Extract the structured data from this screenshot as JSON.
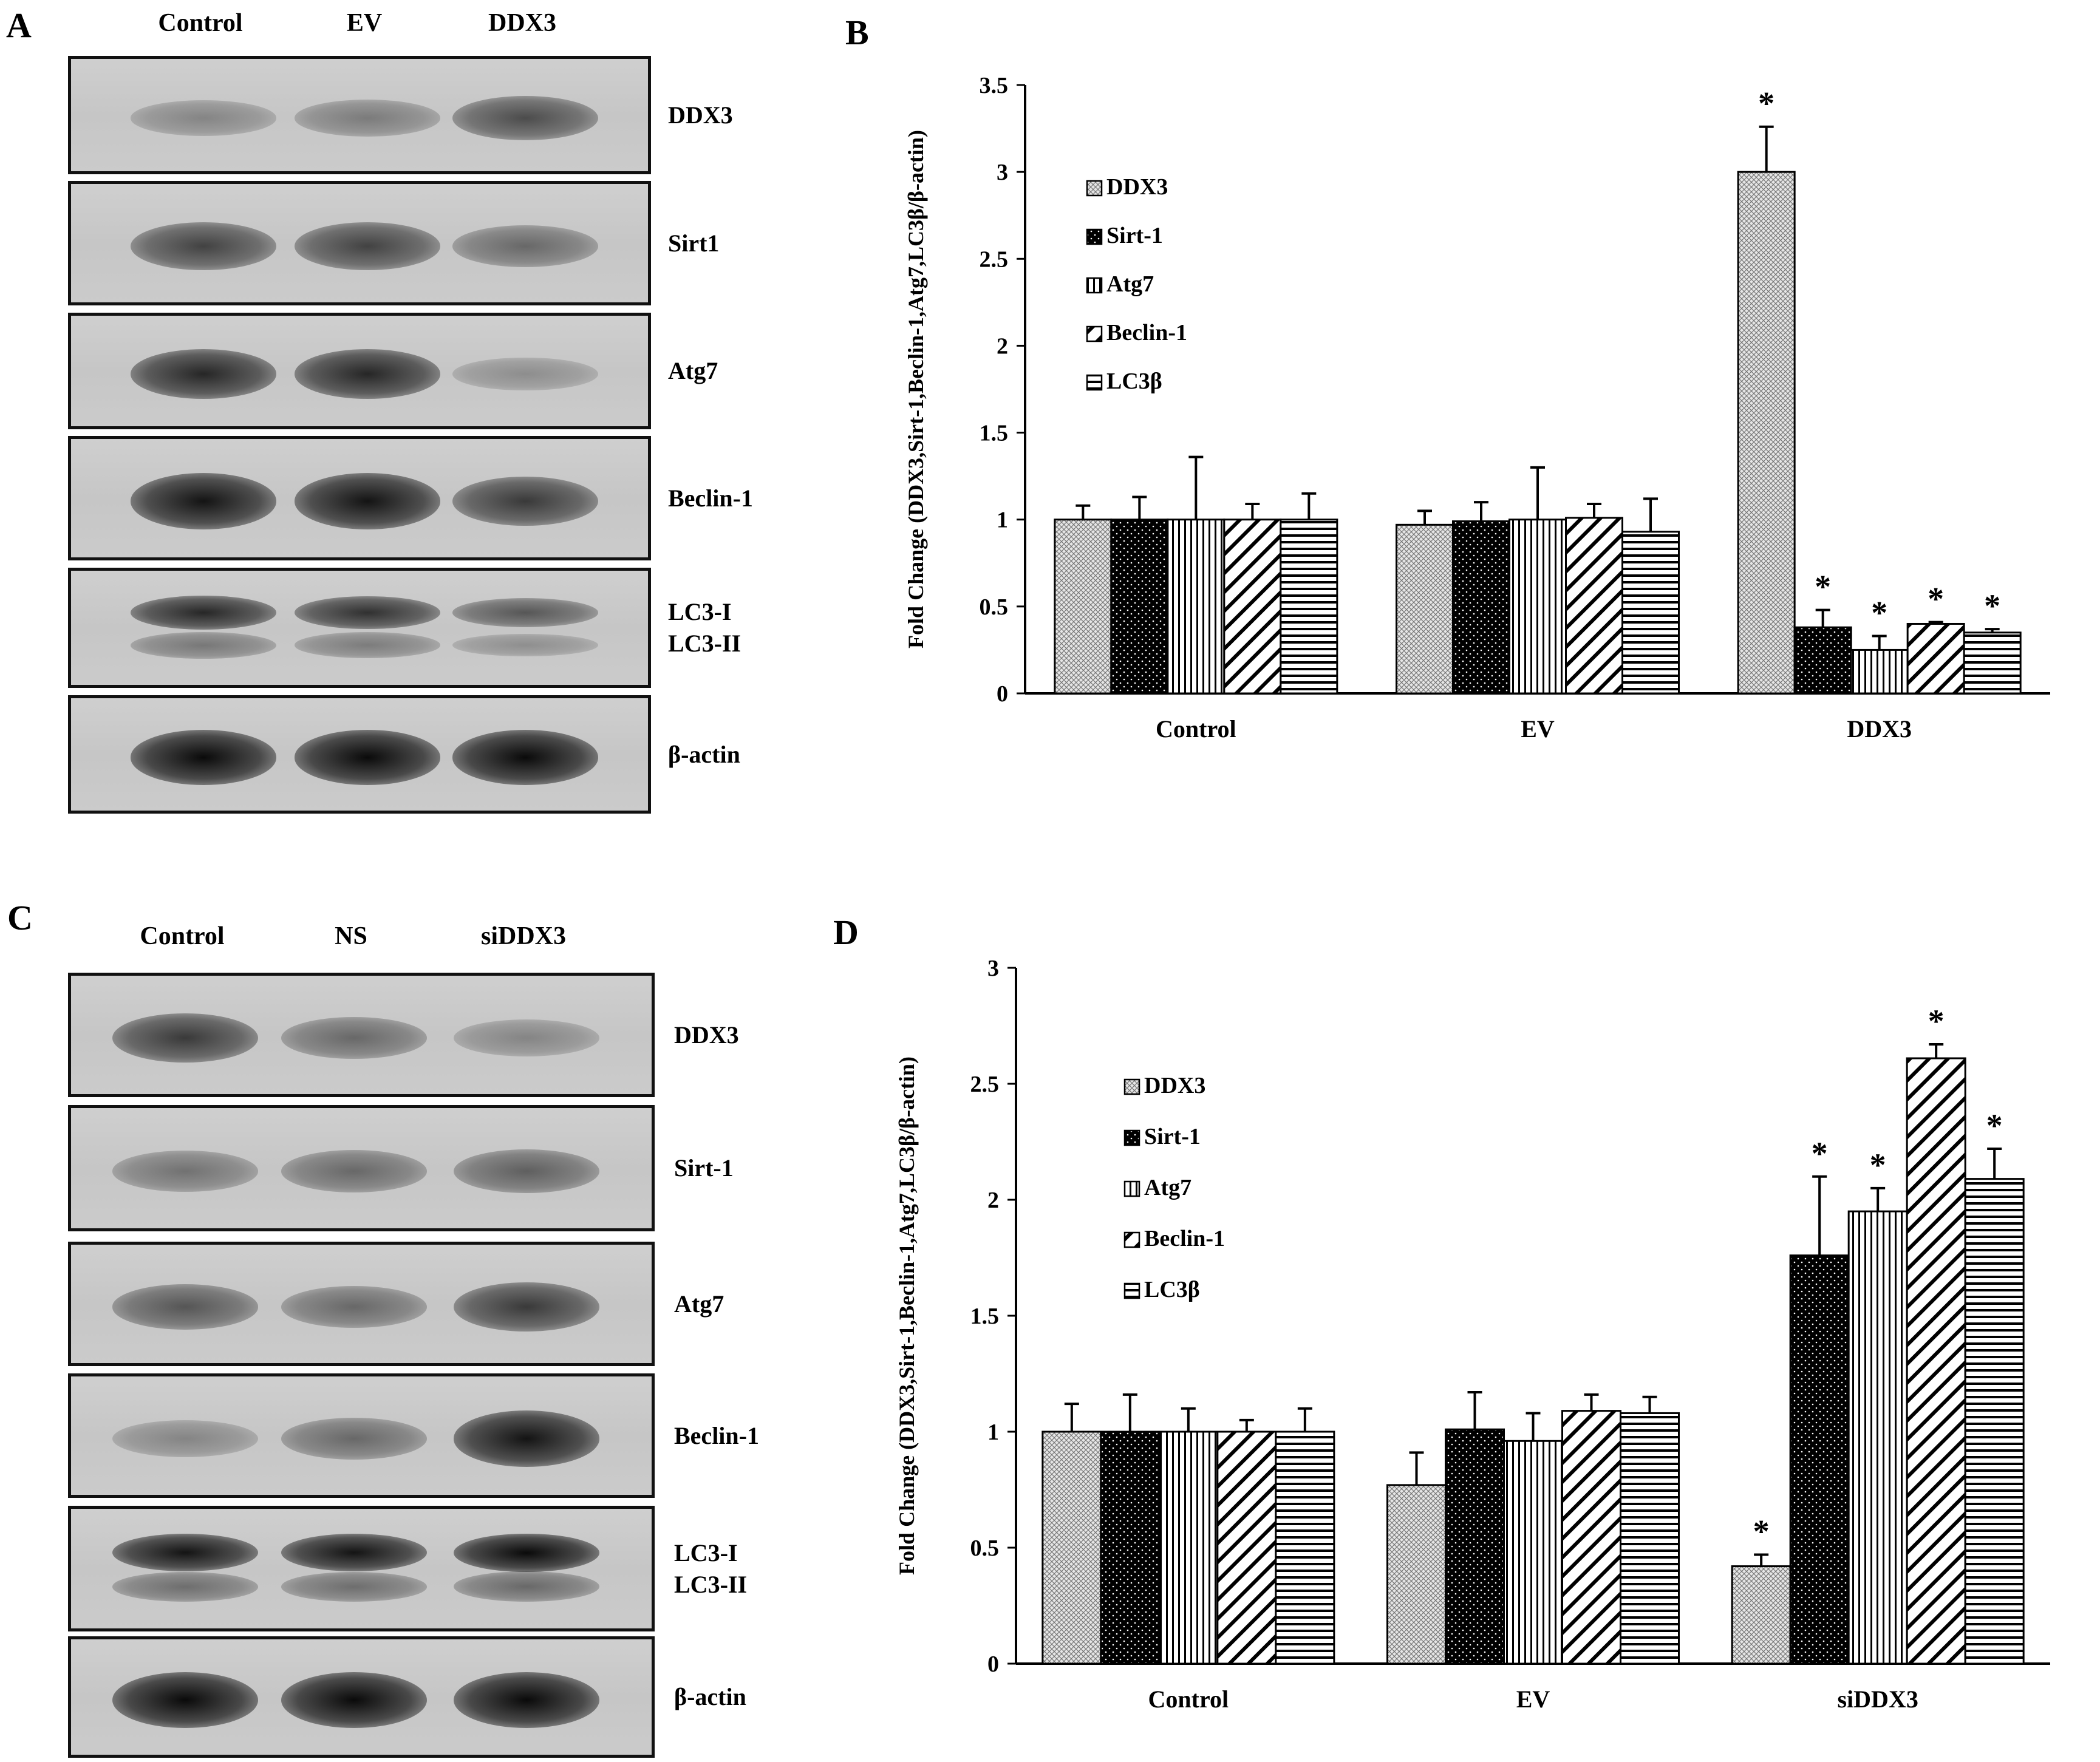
{
  "panels": {
    "A": "A",
    "B": "B",
    "C": "C",
    "D": "D"
  },
  "blot_A": {
    "columns": [
      "Control",
      "EV",
      "DDX3"
    ],
    "rows": [
      {
        "label": "DDX3",
        "intensity": [
          0.35,
          0.4,
          0.65
        ]
      },
      {
        "label": "Sirt1",
        "intensity": [
          0.7,
          0.7,
          0.5
        ]
      },
      {
        "label": "Atg7",
        "intensity": [
          0.85,
          0.85,
          0.3
        ]
      },
      {
        "label": "Beclin-1",
        "intensity": [
          0.95,
          0.95,
          0.75
        ]
      },
      {
        "label": "LC3-I\nLC3-II",
        "intensity": [
          0.85,
          0.8,
          0.6
        ]
      },
      {
        "label": "β-actin",
        "intensity": [
          1,
          1,
          1
        ]
      }
    ]
  },
  "blot_C": {
    "columns": [
      "Control",
      "NS",
      "siDDX3"
    ],
    "rows": [
      {
        "label": "DDX3",
        "intensity": [
          0.75,
          0.5,
          0.35
        ]
      },
      {
        "label": "Sirt-1",
        "intensity": [
          0.45,
          0.5,
          0.55
        ]
      },
      {
        "label": "Atg7",
        "intensity": [
          0.6,
          0.5,
          0.75
        ]
      },
      {
        "label": "Beclin-1",
        "intensity": [
          0.35,
          0.5,
          0.95
        ]
      },
      {
        "label": "LC3-I\nLC3-II",
        "intensity": [
          0.95,
          0.95,
          1
        ]
      },
      {
        "label": "β-actin",
        "intensity": [
          1,
          1,
          1
        ]
      }
    ]
  },
  "chart_data": [
    {
      "type": "bar",
      "panel": "B",
      "categories": [
        "Control",
        "EV",
        "DDX3"
      ],
      "ylabel": "Fold Change (DDX3,Sirt-1,Beclin-1,Atg7,LC3β/β-actin)",
      "ylim": [
        0,
        3.5
      ],
      "yticks": [
        "0",
        "0.5",
        "1",
        "1.5",
        "2",
        "2.5",
        "3",
        "3.5"
      ],
      "legend_position": "top-left",
      "series": [
        {
          "name": "DDX3",
          "values": [
            1.0,
            0.97,
            3.0
          ],
          "errors": [
            0.08,
            0.08,
            0.26
          ],
          "significant": [
            false,
            false,
            true
          ]
        },
        {
          "name": "Sirt-1",
          "values": [
            1.0,
            0.99,
            0.38
          ],
          "errors": [
            0.13,
            0.11,
            0.1
          ],
          "significant": [
            false,
            false,
            true
          ]
        },
        {
          "name": "Atg7",
          "values": [
            1.0,
            1.0,
            0.25
          ],
          "errors": [
            0.36,
            0.3,
            0.08
          ],
          "significant": [
            false,
            false,
            true
          ]
        },
        {
          "name": "Beclin-1",
          "values": [
            1.0,
            1.01,
            0.4
          ],
          "errors": [
            0.09,
            0.08,
            0.01
          ],
          "significant": [
            false,
            false,
            true
          ]
        },
        {
          "name": "LC3β",
          "values": [
            1.0,
            0.93,
            0.35
          ],
          "errors": [
            0.15,
            0.19,
            0.02
          ],
          "significant": [
            false,
            false,
            true
          ]
        }
      ],
      "significance_marker": "*"
    },
    {
      "type": "bar",
      "panel": "D",
      "categories": [
        "Control",
        "EV",
        "siDDX3"
      ],
      "ylabel": "Fold Change (DDX3,Sirt-1,Beclin-1,Atg7,LC3β/β-actin)",
      "ylim": [
        0,
        3
      ],
      "yticks": [
        "0",
        "0.5",
        "1",
        "1.5",
        "2",
        "2.5",
        "3"
      ],
      "legend_position": "top-left",
      "series": [
        {
          "name": "DDX3",
          "values": [
            1.0,
            0.77,
            0.42
          ],
          "errors": [
            0.12,
            0.14,
            0.05
          ],
          "significant": [
            false,
            false,
            true
          ]
        },
        {
          "name": "Sirt-1",
          "values": [
            1.0,
            1.01,
            1.76
          ],
          "errors": [
            0.16,
            0.16,
            0.34
          ],
          "significant": [
            false,
            false,
            true
          ]
        },
        {
          "name": "Atg7",
          "values": [
            1.0,
            0.96,
            1.95
          ],
          "errors": [
            0.1,
            0.12,
            0.1
          ],
          "significant": [
            false,
            false,
            true
          ]
        },
        {
          "name": "Beclin-1",
          "values": [
            1.0,
            1.09,
            2.61
          ],
          "errors": [
            0.05,
            0.07,
            0.06
          ],
          "significant": [
            false,
            false,
            true
          ]
        },
        {
          "name": "LC3β",
          "values": [
            1.0,
            1.08,
            2.09
          ],
          "errors": [
            0.1,
            0.07,
            0.13
          ],
          "significant": [
            false,
            false,
            true
          ]
        }
      ],
      "significance_marker": "*"
    }
  ]
}
